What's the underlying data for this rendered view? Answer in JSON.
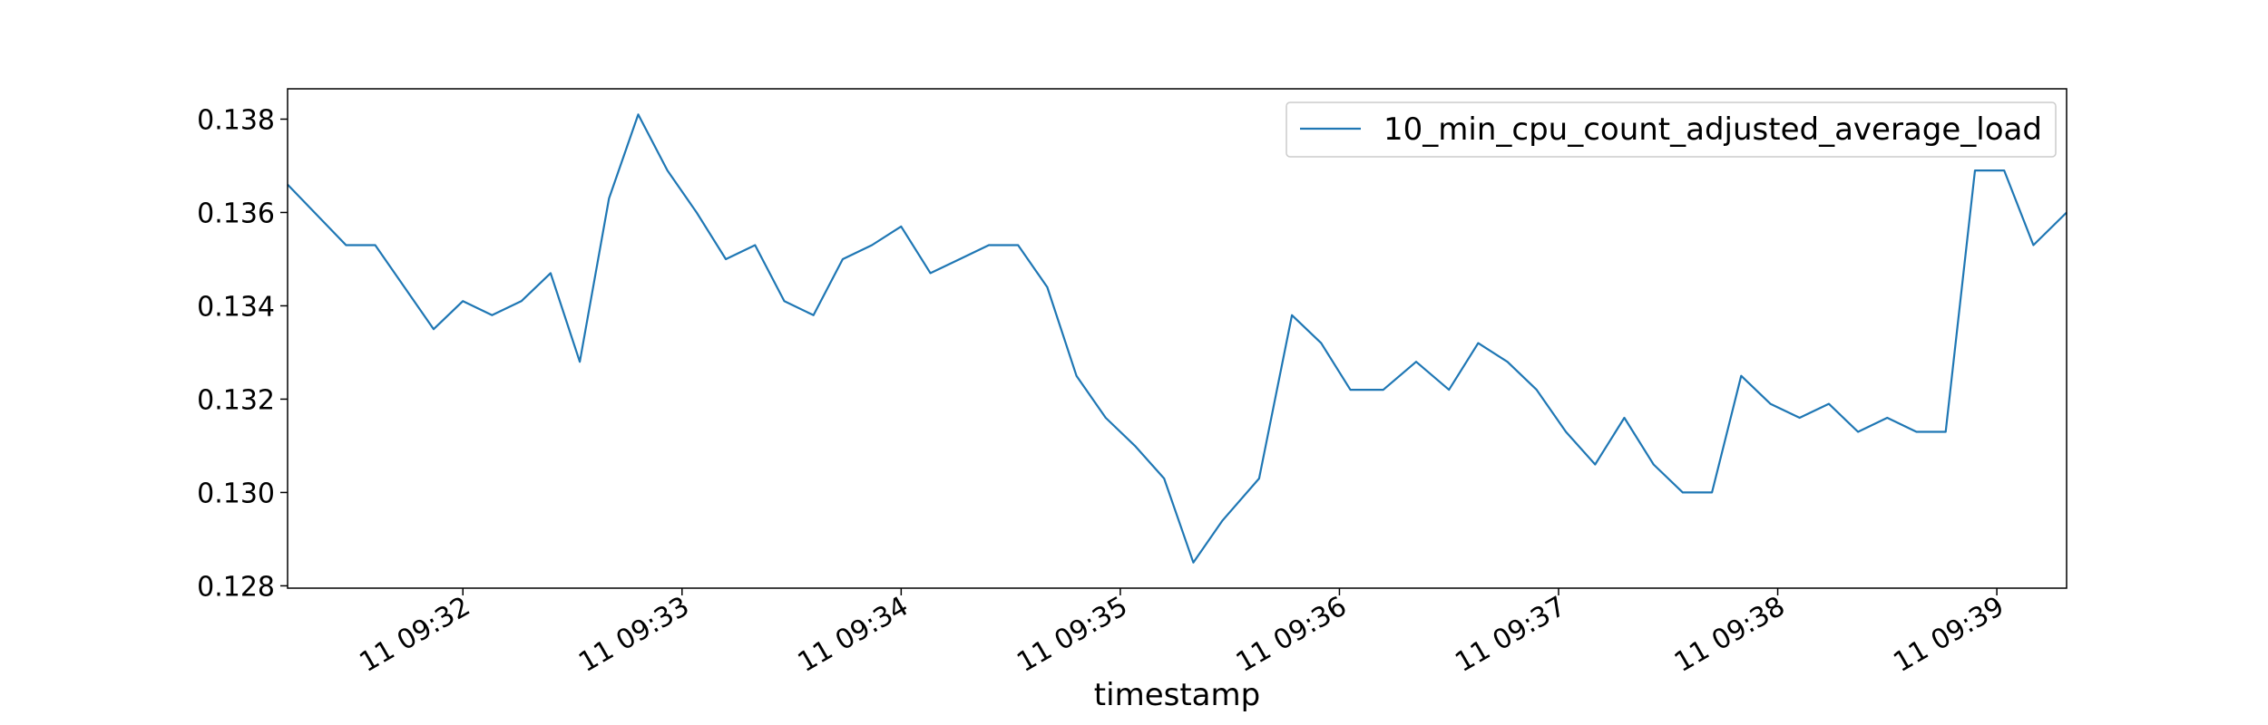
{
  "chart_data": {
    "type": "line",
    "title": "",
    "xlabel": "timestamp",
    "ylabel": "",
    "ylim": [
      0.12795,
      0.13865
    ],
    "y_ticks": [
      0.128,
      0.13,
      0.132,
      0.134,
      0.136,
      0.138
    ],
    "y_tick_labels": [
      "0.128",
      "0.130",
      "0.132",
      "0.134",
      "0.136",
      "0.138"
    ],
    "xlim_seconds": [
      -48.0,
      439.1
    ],
    "x_ticks_seconds": [
      0,
      60,
      120,
      180,
      240,
      300,
      360,
      420
    ],
    "x_tick_labels": [
      "11 09:32",
      "11 09:33",
      "11 09:34",
      "11 09:35",
      "11 09:36",
      "11 09:37",
      "11 09:38",
      "11 09:39"
    ],
    "grid": false,
    "legend": {
      "position": "top-right",
      "entries": [
        "10_min_cpu_count_adjusted_average_load"
      ]
    },
    "line_color": "#1f77b4",
    "series": [
      {
        "name": "10_min_cpu_count_adjusted_average_load",
        "x": [
          -48.0,
          -32.0,
          -24.0,
          -8.0,
          0.0,
          8.0,
          16.0,
          24.0,
          32.0,
          40.0,
          48.0,
          56.0,
          64.0,
          72.0,
          80.0,
          88.0,
          96.0,
          104.0,
          112.0,
          120.0,
          128.0,
          136.0,
          144.0,
          152.0,
          160.0,
          168.0,
          176.0,
          184.0,
          192.0,
          200.0,
          208.0,
          218.0,
          227.0,
          235.0,
          243.0,
          252.0,
          261.0,
          270.0,
          278.0,
          286.0,
          294.0,
          302.0,
          310.0,
          318.0,
          326.0,
          334.0,
          342.0,
          350.0,
          358.0,
          366.0,
          374.0,
          382.0,
          390.0,
          398.0,
          406.0,
          414.0,
          422.0,
          430.0,
          439.1
        ],
        "y": [
          0.1366,
          0.1353,
          0.1353,
          0.1335,
          0.1341,
          0.1338,
          0.1341,
          0.1347,
          0.1328,
          0.1363,
          0.1381,
          0.1369,
          0.136,
          0.135,
          0.1353,
          0.1341,
          0.1338,
          0.135,
          0.1353,
          0.1357,
          0.1347,
          0.135,
          0.1353,
          0.1353,
          0.1344,
          0.1325,
          0.1316,
          0.131,
          0.1303,
          0.1285,
          0.1294,
          0.1303,
          0.1338,
          0.1332,
          0.1322,
          0.1322,
          0.1328,
          0.1322,
          0.1332,
          0.1328,
          0.1322,
          0.1313,
          0.1306,
          0.1316,
          0.1306,
          0.13,
          0.13,
          0.1325,
          0.1319,
          0.1316,
          0.1319,
          0.1313,
          0.1316,
          0.1313,
          0.1313,
          0.1369,
          0.1369,
          0.1353,
          0.136
        ]
      }
    ]
  }
}
